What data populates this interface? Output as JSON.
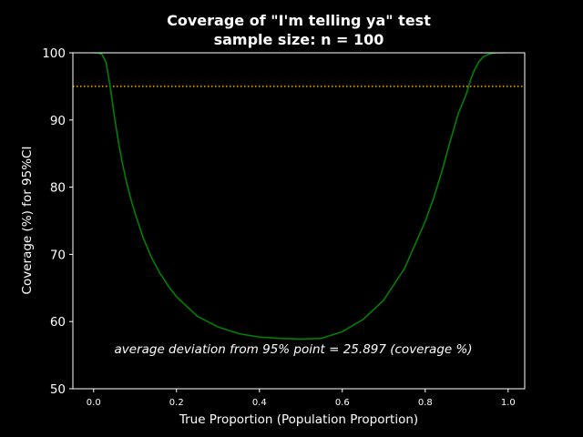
{
  "chart_data": {
    "type": "line",
    "title": "Coverage of \"I'm telling ya\" test",
    "subtitle": "sample size: n = 100",
    "xlabel": "True Proportion (Population Proportion)",
    "ylabel": "Coverage (%) for 95%CI",
    "xlim": [
      -0.05,
      1.04
    ],
    "ylim": [
      50,
      100
    ],
    "x_ticks": [
      0.0,
      0.2,
      0.4,
      0.6,
      0.8,
      1.0
    ],
    "x_tick_labels": [
      "0.0",
      "0.2",
      "0.4",
      "0.6",
      "0.8",
      "1.0"
    ],
    "y_ticks": [
      50,
      60,
      70,
      80,
      90,
      100
    ],
    "y_tick_labels": [
      "50",
      "60",
      "70",
      "80",
      "90",
      "100"
    ],
    "grid": false,
    "series": [
      {
        "color": "#008000",
        "x": [
          0.0,
          0.01,
          0.02,
          0.03,
          0.04,
          0.05,
          0.06,
          0.07,
          0.08,
          0.09,
          0.1,
          0.12,
          0.14,
          0.16,
          0.18,
          0.2,
          0.25,
          0.3,
          0.35,
          0.4,
          0.45,
          0.5,
          0.55,
          0.6,
          0.65,
          0.7,
          0.75,
          0.8,
          0.82,
          0.84,
          0.86,
          0.88,
          0.9,
          0.91,
          0.92,
          0.93,
          0.94,
          0.95,
          0.96,
          0.97,
          0.98,
          0.99
        ],
        "y": [
          100,
          100,
          99.8,
          98.6,
          95.0,
          90.6,
          86.7,
          83.4,
          80.6,
          78.2,
          76.1,
          72.4,
          69.5,
          67.2,
          65.3,
          63.7,
          60.8,
          59.2,
          58.2,
          57.7,
          57.5,
          57.4,
          57.5,
          58.5,
          60.3,
          63.2,
          67.9,
          74.9,
          78.3,
          82.3,
          86.8,
          91.0,
          94.0,
          96.1,
          97.6,
          98.7,
          99.4,
          99.7,
          99.9,
          100,
          100,
          100
        ]
      }
    ],
    "reference_line": {
      "y": 95,
      "color": "#ffa500",
      "style": "dotted"
    },
    "annotation": {
      "text": "average deviation from 95% point = 25.897 (coverage %)",
      "x": 0.05,
      "y": 55
    }
  }
}
